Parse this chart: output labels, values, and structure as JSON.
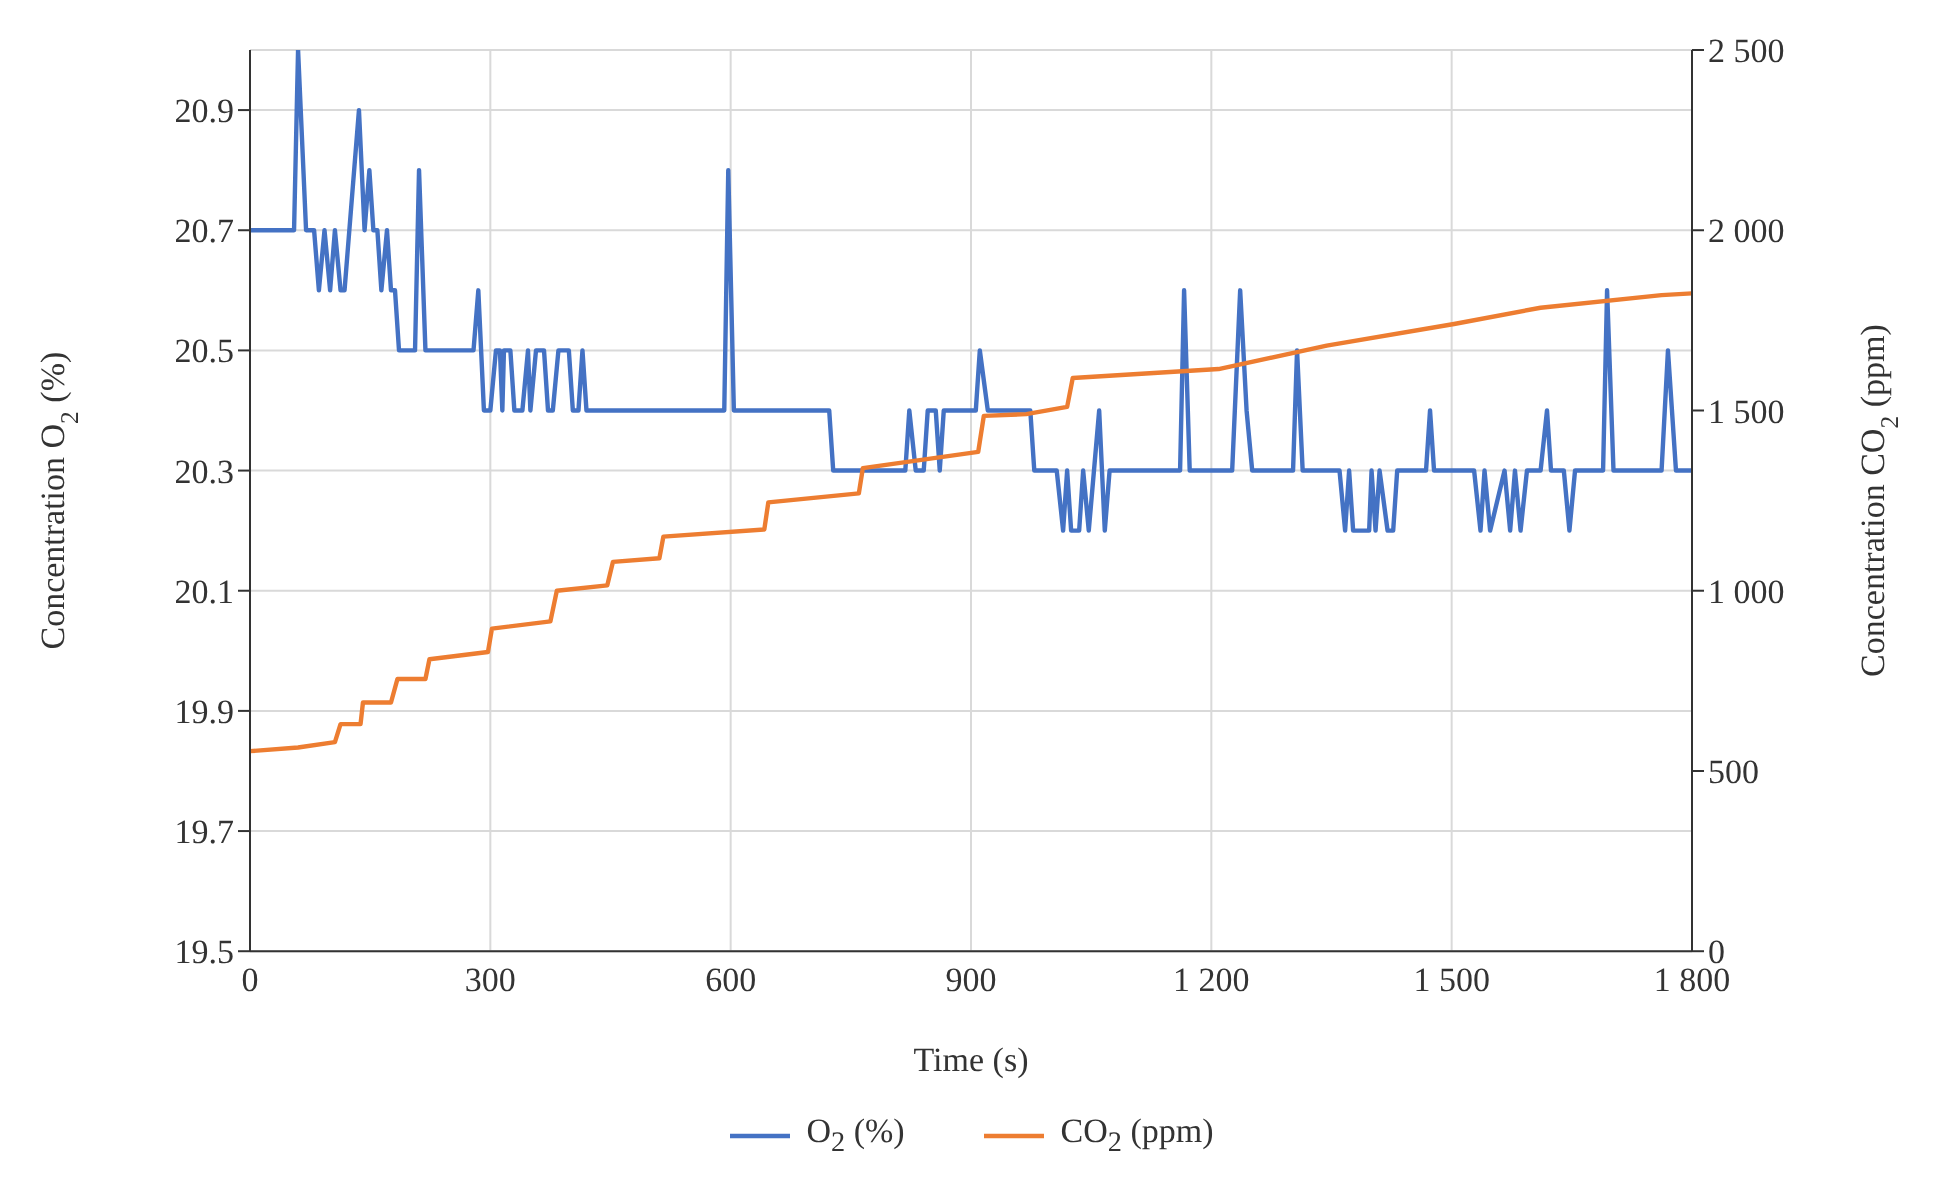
{
  "chart_data": {
    "type": "line",
    "xlabel": "Time (s)",
    "ylabel": "Concentration O$_{2}$ (%)",
    "y2label": "Concentration CO$_{2}$ (ppm)",
    "xlim": [
      0,
      1800
    ],
    "xticks": [
      0,
      300,
      600,
      900,
      {
        "value": 1200,
        "label": "1 200"
      },
      {
        "value": 1500,
        "label": "1 500"
      },
      {
        "value": 1800,
        "label": "1 800"
      }
    ],
    "ylim": [
      19.5,
      21.0
    ],
    "yticks": [
      19.5,
      19.7,
      19.9,
      20.1,
      20.3,
      20.5,
      20.7,
      20.9
    ],
    "y2lim": [
      0,
      2500
    ],
    "y2ticks": [
      0,
      500,
      {
        "value": 1000,
        "label": "1 000"
      },
      {
        "value": 1500,
        "label": "1 500"
      },
      {
        "value": 2000,
        "label": "2 000"
      },
      {
        "value": 2500,
        "label": "2 500"
      }
    ],
    "grid": true,
    "legend": "bottom",
    "marker": "none",
    "line_style": "solid",
    "series": [
      {
        "name": "O$_{2}$ (%)",
        "color": "#4472c4",
        "x": [
          0,
          55,
          60,
          70,
          80,
          86,
          93,
          100,
          106,
          113,
          118,
          136,
          143,
          149,
          154,
          159,
          164,
          171,
          176,
          181,
          186,
          206,
          211,
          219,
          279,
          285,
          292,
          300,
          307,
          312,
          315,
          317,
          325,
          330,
          340,
          347,
          350,
          357,
          367,
          372,
          378,
          385,
          398,
          403,
          410,
          415,
          420,
          592,
          597,
          604,
          723,
          728,
          818,
          823,
          831,
          841,
          846,
          856,
          861,
          866,
          906,
          911,
          921,
          974,
          979,
          1007,
          1015,
          1020,
          1025,
          1035,
          1040,
          1047,
          1060,
          1067,
          1073,
          1161,
          1166,
          1173,
          1226,
          1236,
          1244,
          1251,
          1302,
          1307,
          1314,
          1360,
          1367,
          1372,
          1377,
          1397,
          1400,
          1405,
          1410,
          1420,
          1427,
          1432,
          1468,
          1473,
          1478,
          1528,
          1536,
          1541,
          1548,
          1566,
          1573,
          1579,
          1586,
          1594,
          1611,
          1619,
          1624,
          1640,
          1647,
          1654,
          1689,
          1694,
          1702,
          1762,
          1770,
          1780,
          1800
        ],
        "values": [
          20.7,
          20.7,
          21.0,
          20.7,
          20.7,
          20.6,
          20.7,
          20.6,
          20.7,
          20.6,
          20.6,
          20.9,
          20.7,
          20.8,
          20.7,
          20.7,
          20.6,
          20.7,
          20.6,
          20.6,
          20.5,
          20.5,
          20.8,
          20.5,
          20.5,
          20.6,
          20.4,
          20.4,
          20.5,
          20.5,
          20.4,
          20.5,
          20.5,
          20.4,
          20.4,
          20.5,
          20.4,
          20.5,
          20.5,
          20.4,
          20.4,
          20.5,
          20.5,
          20.4,
          20.4,
          20.5,
          20.4,
          20.4,
          20.8,
          20.4,
          20.4,
          20.3,
          20.3,
          20.4,
          20.3,
          20.3,
          20.4,
          20.4,
          20.3,
          20.4,
          20.4,
          20.5,
          20.4,
          20.4,
          20.3,
          20.3,
          20.2,
          20.3,
          20.2,
          20.2,
          20.3,
          20.2,
          20.4,
          20.2,
          20.3,
          20.3,
          20.6,
          20.3,
          20.3,
          20.6,
          20.4,
          20.3,
          20.3,
          20.5,
          20.3,
          20.3,
          20.2,
          20.3,
          20.2,
          20.2,
          20.3,
          20.2,
          20.3,
          20.2,
          20.2,
          20.3,
          20.3,
          20.4,
          20.3,
          20.3,
          20.2,
          20.3,
          20.2,
          20.3,
          20.2,
          20.3,
          20.2,
          20.3,
          20.3,
          20.4,
          20.3,
          20.3,
          20.2,
          20.3,
          20.3,
          20.6,
          20.3,
          20.3,
          20.5,
          20.3,
          20.3
        ]
      },
      {
        "name": "CO$_{2}$ (ppm)",
        "color": "#ed7d31",
        "axis": "y2",
        "x": [
          0,
          60,
          106,
          113,
          138,
          141,
          176,
          184,
          219,
          224,
          297,
          302,
          375,
          383,
          446,
          453,
          511,
          516,
          642,
          647,
          760,
          765,
          909,
          916,
          969,
          1020,
          1027,
          1209,
          1344,
          1503,
          1611,
          1762,
          1800
        ],
        "values": [
          555,
          565,
          580,
          630,
          630,
          690,
          690,
          755,
          755,
          810,
          830,
          895,
          915,
          1000,
          1015,
          1080,
          1090,
          1150,
          1170,
          1245,
          1270,
          1340,
          1385,
          1485,
          1490,
          1510,
          1590,
          1615,
          1680,
          1740,
          1785,
          1820,
          1825
        ]
      }
    ]
  }
}
